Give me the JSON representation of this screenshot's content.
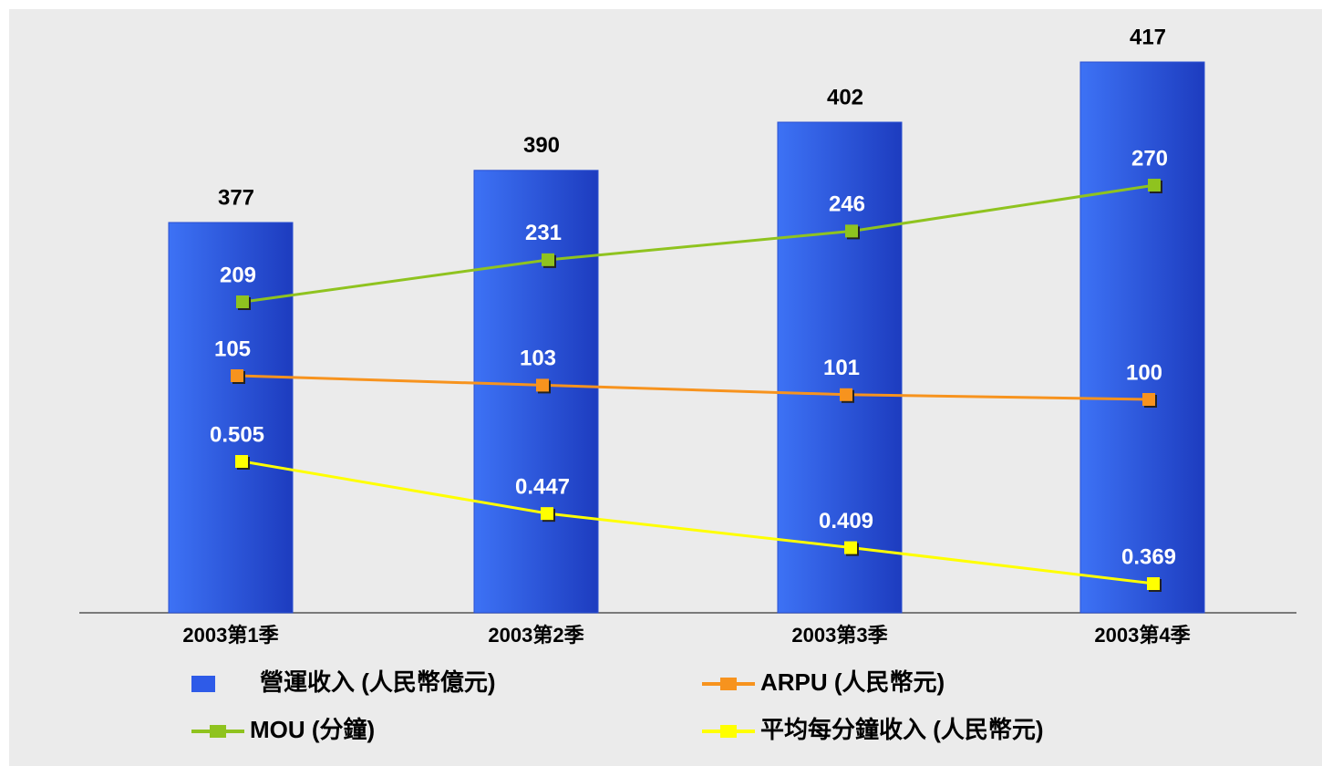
{
  "chart_data": {
    "type": "bar",
    "categories": [
      "2003第1季",
      "2003第2季",
      "2003第3季",
      "2003第4季"
    ],
    "series": [
      {
        "name": "營運收入 (人民幣億元)",
        "type": "bar",
        "color": "#2e5be8",
        "values": [
          377,
          390,
          402,
          417
        ]
      },
      {
        "name": "MOU (分鐘)",
        "type": "line",
        "color": "#8fc31f",
        "values": [
          209,
          231,
          246,
          270
        ]
      },
      {
        "name": "ARPU (人民幣元)",
        "type": "line",
        "color": "#f7931e",
        "values": [
          105,
          103,
          101,
          100
        ]
      },
      {
        "name": "平均每分鐘收入 (人民幣元)",
        "type": "line",
        "color": "#ffff00",
        "values": [
          0.505,
          0.447,
          0.409,
          0.369
        ]
      }
    ]
  }
}
